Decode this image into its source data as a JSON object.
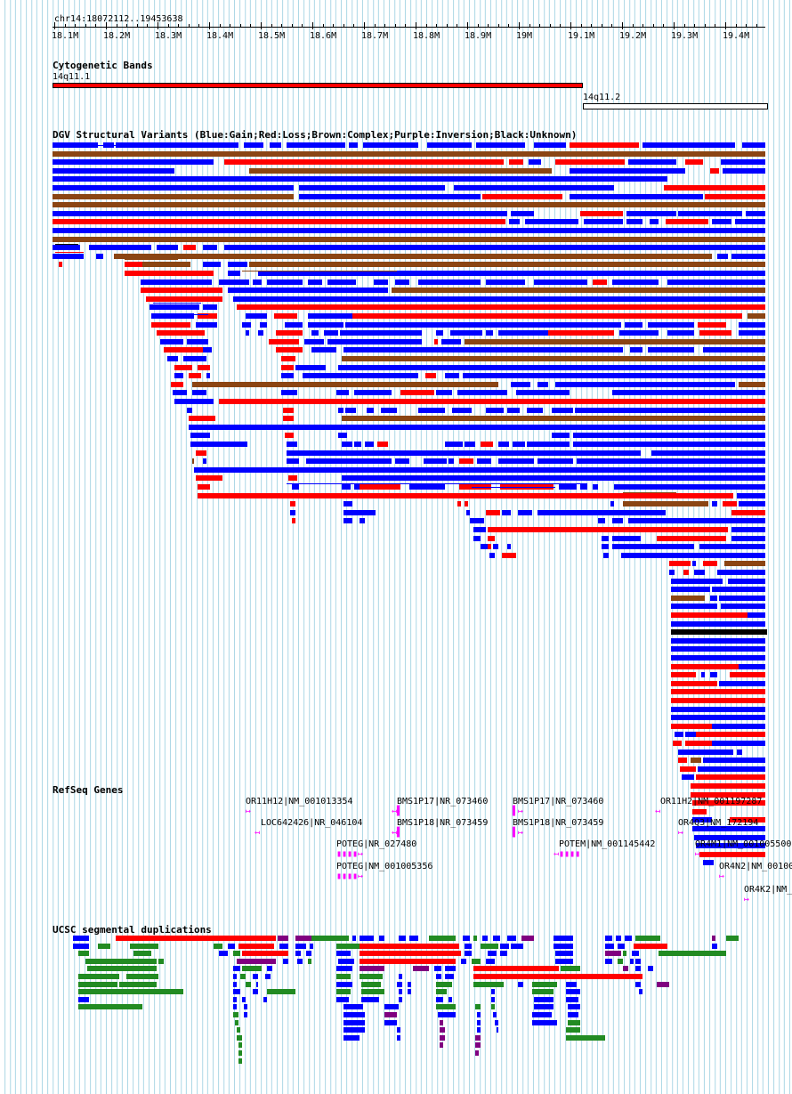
{
  "coordinates_label": "chr14:18072112..19453638",
  "ruler": {
    "tick_labels": [
      "18.1M",
      "18.2M",
      "18.3M",
      "18.4M",
      "18.5M",
      "18.6M",
      "18.7M",
      "18.8M",
      "18.9M",
      "19M",
      "19.1M",
      "19.2M",
      "19.3M",
      "19.4M"
    ],
    "range_bp": [
      18072112,
      19453638
    ]
  },
  "tracks": {
    "cytoband": {
      "title": "Cytogenetic Bands",
      "bands": [
        {
          "name": "14q11.1",
          "start": 18072112,
          "end": 19100000,
          "color": "#ff0000"
        },
        {
          "name": "14q11.2",
          "start": 19100000,
          "end": 19453638,
          "color": "#ffffff"
        }
      ]
    },
    "dgv": {
      "title": "DGV Structural Variants (Blue:Gain;Red:Loss;Brown:Complex;Purple:Inversion;Black:Unknown)",
      "colors": {
        "gain": "#0000ff",
        "loss": "#ff0000",
        "complex": "#8b4513",
        "inversion": "#800080",
        "unknown": "#000000"
      }
    },
    "refseq": {
      "title": "RefSeq Genes",
      "genes": [
        {
          "label": "OR11H12|NM_001013354",
          "glyph": "↦"
        },
        {
          "label": "LOC642426|NR_046104",
          "glyph": "↤"
        },
        {
          "label": "POTEG|NR_027480",
          "glyph": "▮▮▮▮↦"
        },
        {
          "label": "POTEG|NM_001005356",
          "glyph": "▮▮▮▮↦"
        },
        {
          "label": "BMS1P17|NR_073460",
          "glyph": "↤▌"
        },
        {
          "label": "BMS1P18|NR_073459",
          "glyph": "↤▌"
        },
        {
          "label": "BMS1P17|NR_073460",
          "glyph": "▌↦"
        },
        {
          "label": "BMS1P18|NR_073459",
          "glyph": "▌↦"
        },
        {
          "label": "POTEM|NM_001145442",
          "glyph": "↤▮▮▮▮"
        },
        {
          "label": "OR11H2|NM_001197287",
          "glyph": "↤"
        },
        {
          "label": "OR4Q3|NM_172194",
          "glyph": "↦"
        },
        {
          "label": "OR4M1|NM_001005500",
          "glyph": "↦"
        },
        {
          "label": "OR4N2|NM_00100",
          "glyph": "↦"
        },
        {
          "label": "OR4K2|NM_",
          "glyph": "↦"
        }
      ]
    },
    "segdup": {
      "title": "UCSC segmental duplications",
      "colors": {
        "blue": "#0000ff",
        "red": "#ff0000",
        "green": "#228b22",
        "purple": "#800080"
      }
    }
  }
}
